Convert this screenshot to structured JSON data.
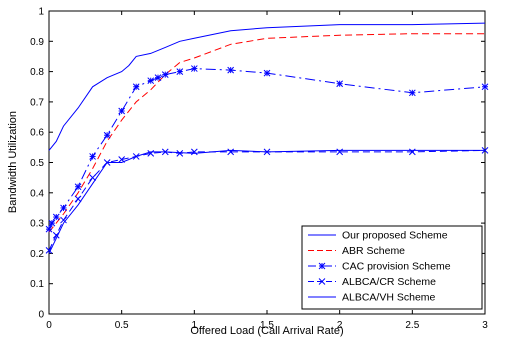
{
  "chart_data": {
    "type": "line",
    "title": "",
    "xlabel": "Offered Load (Call Arrival Rate)",
    "ylabel": "Bandwidth Utilization",
    "xlim": [
      0,
      3
    ],
    "ylim": [
      0,
      1
    ],
    "xticks": [
      "0",
      "0.5",
      "1",
      "1.5",
      "2",
      "2.5",
      "3"
    ],
    "yticks": [
      "0",
      "0.1",
      "0.2",
      "0.3",
      "0.4",
      "0.5",
      "0.6",
      "0.7",
      "0.8",
      "0.9",
      "1"
    ],
    "grid": false,
    "legend_position": "bottom-right",
    "series": [
      {
        "name": "Our proposed Scheme",
        "color": "#0000ff",
        "style": "solid",
        "marker": "none",
        "x": [
          0,
          0.05,
          0.1,
          0.2,
          0.3,
          0.4,
          0.5,
          0.55,
          0.6,
          0.7,
          0.8,
          0.9,
          1,
          1.25,
          1.5,
          2,
          2.5,
          3
        ],
        "y": [
          0.54,
          0.57,
          0.62,
          0.68,
          0.75,
          0.78,
          0.8,
          0.82,
          0.85,
          0.86,
          0.88,
          0.9,
          0.91,
          0.935,
          0.945,
          0.955,
          0.955,
          0.96
        ]
      },
      {
        "name": "ABR Scheme",
        "color": "#ff0000",
        "style": "dashed",
        "marker": "none",
        "x": [
          0,
          0.1,
          0.2,
          0.3,
          0.4,
          0.5,
          0.6,
          0.7,
          0.8,
          0.9,
          1,
          1.25,
          1.5,
          2,
          2.5,
          3
        ],
        "y": [
          0.27,
          0.33,
          0.4,
          0.48,
          0.57,
          0.64,
          0.7,
          0.74,
          0.79,
          0.83,
          0.845,
          0.89,
          0.91,
          0.92,
          0.925,
          0.925
        ]
      },
      {
        "name": "CAC provision Scheme",
        "color": "#0000ff",
        "style": "dashdot",
        "marker": "asterisk",
        "x": [
          0,
          0.02,
          0.05,
          0.1,
          0.2,
          0.3,
          0.4,
          0.5,
          0.6,
          0.7,
          0.75,
          0.8,
          0.9,
          1,
          1.25,
          1.5,
          2,
          2.5,
          3
        ],
        "y": [
          0.28,
          0.3,
          0.32,
          0.35,
          0.42,
          0.52,
          0.59,
          0.67,
          0.75,
          0.77,
          0.78,
          0.79,
          0.8,
          0.81,
          0.805,
          0.795,
          0.76,
          0.73,
          0.75
        ]
      },
      {
        "name": "ALBCA/CR Scheme",
        "color": "#0000ff",
        "style": "dashed",
        "marker": "x",
        "x": [
          0,
          0.05,
          0.1,
          0.2,
          0.3,
          0.4,
          0.5,
          0.6,
          0.7,
          0.8,
          0.9,
          1,
          1.25,
          1.5,
          2,
          2.5,
          3
        ],
        "y": [
          0.21,
          0.26,
          0.31,
          0.38,
          0.45,
          0.5,
          0.51,
          0.52,
          0.53,
          0.535,
          0.53,
          0.535,
          0.535,
          0.535,
          0.535,
          0.535,
          0.54
        ]
      },
      {
        "name": "ALBCA/VH Scheme",
        "color": "#0000ff",
        "style": "solid",
        "marker": "none",
        "x": [
          0,
          0.05,
          0.1,
          0.2,
          0.3,
          0.4,
          0.5,
          0.6,
          0.7,
          0.8,
          1,
          1.25,
          1.5,
          2,
          2.5,
          3
        ],
        "y": [
          0.2,
          0.25,
          0.3,
          0.36,
          0.43,
          0.5,
          0.5,
          0.52,
          0.535,
          0.535,
          0.53,
          0.54,
          0.535,
          0.54,
          0.54,
          0.54
        ]
      }
    ]
  }
}
